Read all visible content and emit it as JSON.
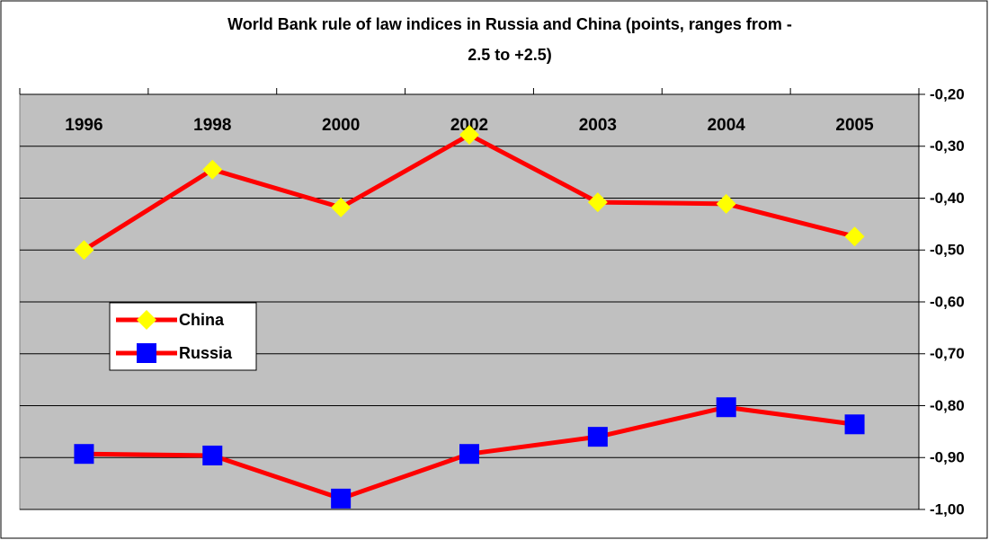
{
  "chart_data": {
    "type": "line",
    "title": [
      "World Bank rule of law indices in Russia and China (points, ranges from -",
      "2.5 to +2.5)"
    ],
    "categories": [
      "1996",
      "1998",
      "2000",
      "2002",
      "2003",
      "2004",
      "2005"
    ],
    "series": [
      {
        "name": "China",
        "color": "#ff0000",
        "marker": "diamond",
        "marker_color": "#ffff00",
        "values": [
          -0.5,
          -0.345,
          -0.418,
          -0.278,
          -0.408,
          -0.411,
          -0.474
        ]
      },
      {
        "name": "Russia",
        "color": "#ff0000",
        "marker": "square",
        "marker_color": "#0000ff",
        "values": [
          -0.893,
          -0.896,
          -0.979,
          -0.893,
          -0.86,
          -0.803,
          -0.836
        ]
      }
    ],
    "ylim": [
      -1.0,
      -0.2
    ],
    "yticks": [
      {
        "value": -0.2,
        "label": "-0,20"
      },
      {
        "value": -0.3,
        "label": "-0,30"
      },
      {
        "value": -0.4,
        "label": "-0,40"
      },
      {
        "value": -0.5,
        "label": "-0,50"
      },
      {
        "value": -0.6,
        "label": "-0,60"
      },
      {
        "value": -0.7,
        "label": "-0,70"
      },
      {
        "value": -0.8,
        "label": "-0,80"
      },
      {
        "value": -0.9,
        "label": "-0,90"
      },
      {
        "value": -1.0,
        "label": "-1,00"
      }
    ],
    "grid": true,
    "plot_background": "#c0c0c0"
  }
}
